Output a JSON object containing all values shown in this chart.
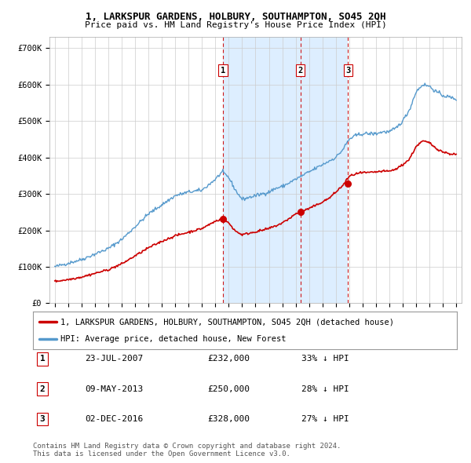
{
  "title": "1, LARKSPUR GARDENS, HOLBURY, SOUTHAMPTON, SO45 2QH",
  "subtitle": "Price paid vs. HM Land Registry's House Price Index (HPI)",
  "ylim": [
    0,
    730000
  ],
  "yticks": [
    0,
    100000,
    200000,
    300000,
    400000,
    500000,
    600000,
    700000
  ],
  "ytick_labels": [
    "£0",
    "£100K",
    "£200K",
    "£300K",
    "£400K",
    "£500K",
    "£600K",
    "£700K"
  ],
  "sale_dates_yr": [
    2007.558,
    2013.354,
    2016.921
  ],
  "sale_prices": [
    232000,
    250000,
    328000
  ],
  "sale_labels": [
    "1",
    "2",
    "3"
  ],
  "sale_color": "#cc0000",
  "hpi_color": "#5599cc",
  "hpi_fill_color": "#ddeeff",
  "vline_color": "#cc0000",
  "legend_sale": "1, LARKSPUR GARDENS, HOLBURY, SOUTHAMPTON, SO45 2QH (detached house)",
  "legend_hpi": "HPI: Average price, detached house, New Forest",
  "table_data": [
    [
      "1",
      "23-JUL-2007",
      "£232,000",
      "33% ↓ HPI"
    ],
    [
      "2",
      "09-MAY-2013",
      "£250,000",
      "28% ↓ HPI"
    ],
    [
      "3",
      "02-DEC-2016",
      "£328,000",
      "27% ↓ HPI"
    ]
  ],
  "footnote": "Contains HM Land Registry data © Crown copyright and database right 2024.\nThis data is licensed under the Open Government Licence v3.0.",
  "background_color": "#ffffff",
  "grid_color": "#cccccc",
  "hpi_key_years": [
    1995,
    1996,
    1997,
    1998,
    1999,
    2000,
    2001,
    2002,
    2003,
    2004,
    2005,
    2006,
    2007,
    2007.5,
    2008,
    2008.5,
    2009,
    2009.5,
    2010,
    2010.5,
    2011,
    2011.5,
    2012,
    2012.5,
    2013,
    2013.5,
    2014,
    2014.5,
    2015,
    2015.5,
    2016,
    2016.5,
    2017,
    2017.5,
    2018,
    2018.5,
    2019,
    2019.5,
    2020,
    2020.5,
    2021,
    2021.5,
    2022,
    2022.5,
    2023,
    2023.5,
    2024,
    2024.5,
    2025
  ],
  "hpi_key_vals": [
    100000,
    110000,
    120000,
    135000,
    150000,
    175000,
    210000,
    245000,
    270000,
    295000,
    305000,
    310000,
    340000,
    360000,
    345000,
    310000,
    285000,
    290000,
    295000,
    300000,
    305000,
    315000,
    320000,
    330000,
    340000,
    350000,
    360000,
    370000,
    380000,
    390000,
    400000,
    420000,
    450000,
    460000,
    465000,
    465000,
    465000,
    470000,
    470000,
    480000,
    500000,
    530000,
    580000,
    600000,
    595000,
    580000,
    570000,
    565000,
    560000
  ],
  "sale_key_years": [
    1995,
    1996,
    1997,
    1998,
    1999,
    2000,
    2001,
    2002,
    2003,
    2004,
    2005,
    2006,
    2007,
    2007.5,
    2008,
    2008.5,
    2009,
    2009.5,
    2010,
    2010.5,
    2011,
    2011.5,
    2012,
    2012.5,
    2013,
    2013.5,
    2014,
    2014.5,
    2015,
    2015.5,
    2016,
    2016.5,
    2017,
    2017.5,
    2018,
    2018.5,
    2019,
    2019.5,
    2020,
    2020.5,
    2021,
    2021.5,
    2022,
    2022.5,
    2023,
    2023.5,
    2024,
    2024.5,
    2025
  ],
  "sale_key_vals": [
    60000,
    65000,
    72000,
    82000,
    92000,
    108000,
    130000,
    152000,
    170000,
    185000,
    195000,
    205000,
    225000,
    232000,
    220000,
    198000,
    188000,
    192000,
    196000,
    200000,
    205000,
    212000,
    220000,
    232000,
    245000,
    252000,
    260000,
    268000,
    278000,
    288000,
    305000,
    322000,
    348000,
    355000,
    358000,
    358000,
    360000,
    362000,
    362000,
    368000,
    380000,
    395000,
    430000,
    445000,
    440000,
    425000,
    415000,
    410000,
    408000
  ]
}
